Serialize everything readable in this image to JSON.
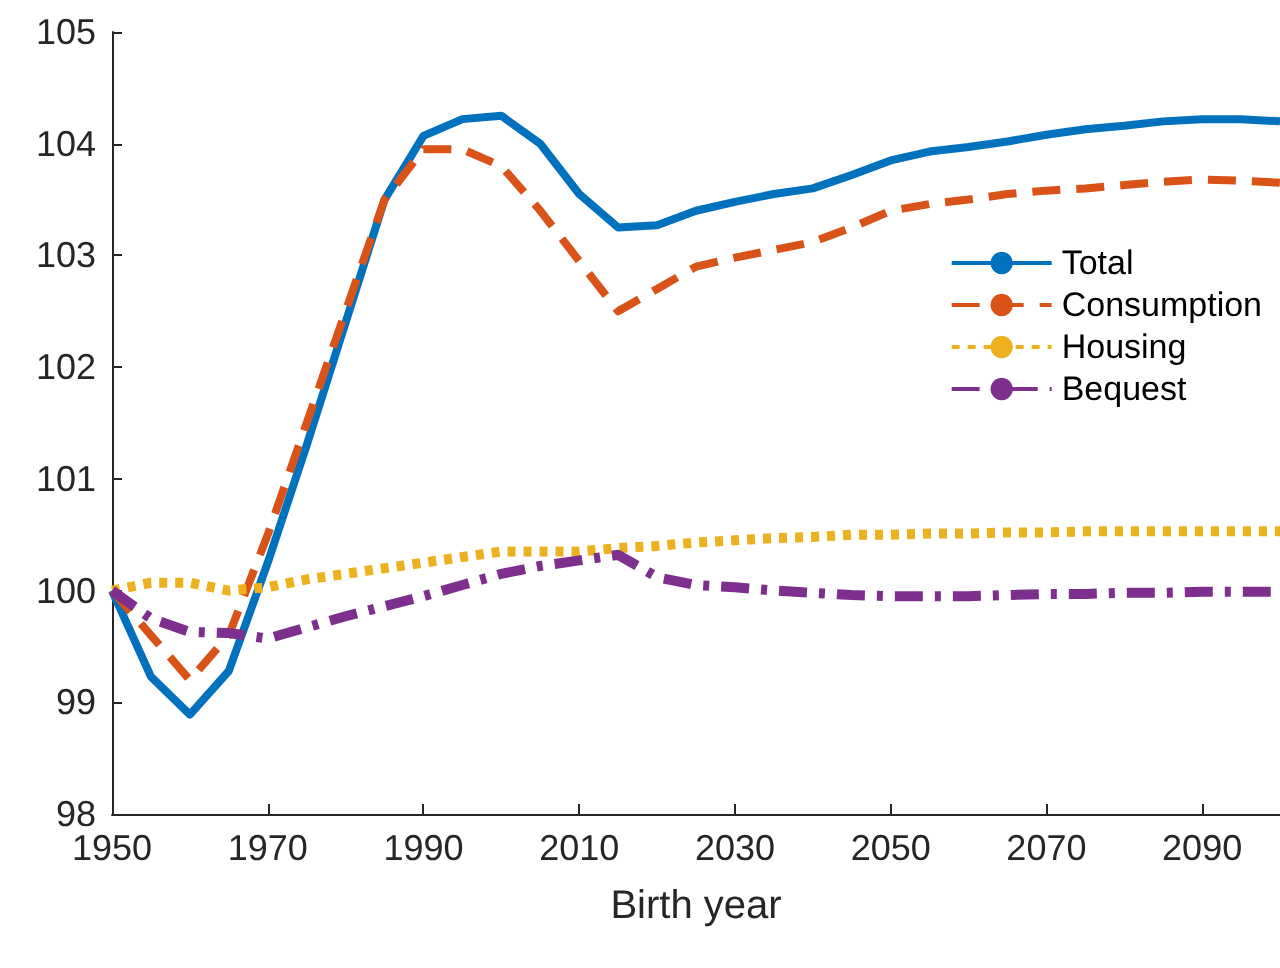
{
  "chart_data": {
    "type": "line",
    "xlabel": "Birth year",
    "x": [
      1950,
      1955,
      1960,
      1965,
      1970,
      1975,
      1980,
      1985,
      1990,
      1995,
      2000,
      2005,
      2010,
      2015,
      2020,
      2025,
      2030,
      2035,
      2040,
      2045,
      2050,
      2055,
      2060,
      2065,
      2070,
      2075,
      2080,
      2085,
      2090,
      2095,
      2100
    ],
    "series": [
      {
        "name": "Total",
        "color": "#0072bd",
        "line_style": "solid",
        "values": [
          100,
          99.23,
          98.89,
          99.28,
          100.25,
          101.3,
          102.4,
          103.5,
          104.07,
          104.22,
          104.25,
          104.0,
          103.55,
          103.25,
          103.27,
          103.4,
          103.48,
          103.55,
          103.6,
          103.72,
          103.85,
          103.93,
          103.97,
          104.02,
          104.08,
          104.13,
          104.16,
          104.2,
          104.22,
          104.22,
          104.2
        ]
      },
      {
        "name": "Consumption",
        "color": "#d95319",
        "line_style": "dashed",
        "values": [
          100,
          99.6,
          99.2,
          99.6,
          100.5,
          101.5,
          102.5,
          103.5,
          103.95,
          103.95,
          103.8,
          103.4,
          102.95,
          102.5,
          102.7,
          102.9,
          102.98,
          103.05,
          103.12,
          103.25,
          103.4,
          103.46,
          103.5,
          103.55,
          103.58,
          103.6,
          103.63,
          103.66,
          103.68,
          103.67,
          103.65
        ]
      },
      {
        "name": "Housing",
        "color": "#edb120",
        "line_style": "dotted",
        "values": [
          100,
          100.07,
          100.07,
          100.0,
          100.03,
          100.1,
          100.15,
          100.2,
          100.25,
          100.3,
          100.35,
          100.35,
          100.35,
          100.38,
          100.4,
          100.43,
          100.45,
          100.47,
          100.48,
          100.5,
          100.5,
          100.51,
          100.51,
          100.52,
          100.52,
          100.53,
          100.53,
          100.53,
          100.53,
          100.53,
          100.53
        ]
      },
      {
        "name": "Bequest",
        "color": "#7e2f8e",
        "line_style": "dashdot",
        "values": [
          100,
          99.75,
          99.63,
          99.62,
          99.57,
          99.67,
          99.77,
          99.86,
          99.95,
          100.05,
          100.15,
          100.22,
          100.27,
          100.32,
          100.12,
          100.05,
          100.03,
          100.0,
          99.98,
          99.96,
          99.95,
          99.95,
          99.95,
          99.96,
          99.97,
          99.97,
          99.98,
          99.98,
          99.99,
          99.99,
          99.99
        ]
      }
    ],
    "xlim": [
      1950,
      2100
    ],
    "xticks": [
      1950,
      1970,
      1990,
      2010,
      2030,
      2050,
      2070,
      2090
    ],
    "ylim": [
      98,
      105
    ],
    "yticks": [
      98,
      99,
      100,
      101,
      102,
      103,
      104,
      105
    ],
    "grid": false,
    "legend": "right",
    "marker": "none"
  }
}
